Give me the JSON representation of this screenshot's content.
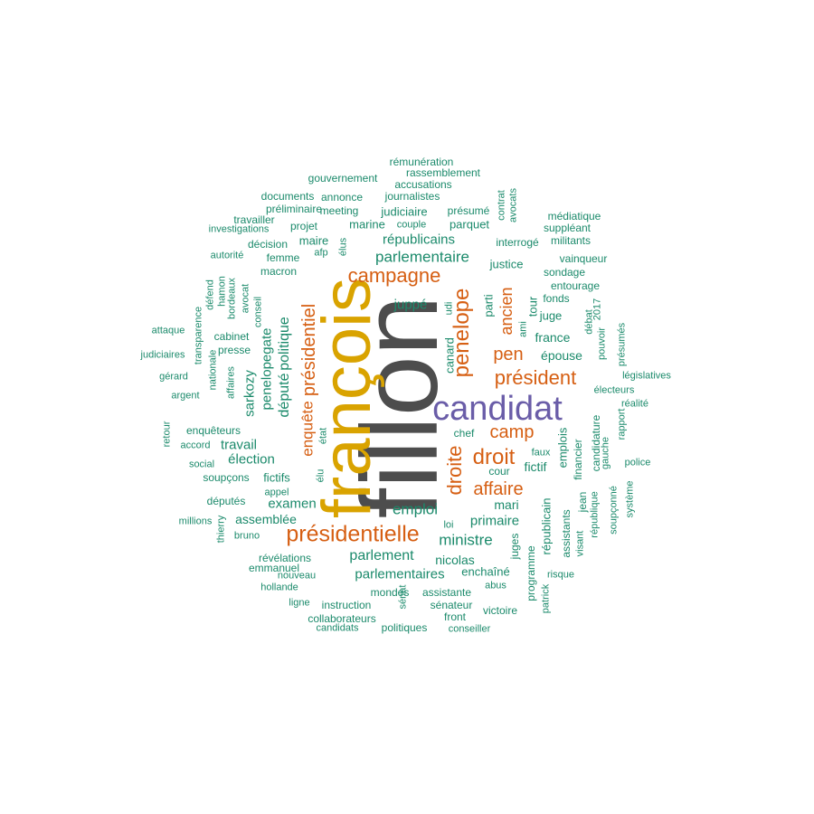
{
  "palette": {
    "dark": "#4d4d4d",
    "gold": "#d9a300",
    "purple": "#6a5da8",
    "orange": "#d65f13",
    "green": "#1b8a6b"
  },
  "words": [
    {
      "text": "fillon",
      "color": "dark"
    },
    {
      "text": "françois",
      "color": "gold"
    },
    {
      "text": "candidat",
      "color": "purple"
    },
    {
      "text": "présidentielle",
      "color": "orange"
    },
    {
      "text": "campagne",
      "color": "orange"
    },
    {
      "text": "penelope",
      "color": "orange"
    },
    {
      "text": "président",
      "color": "orange"
    },
    {
      "text": "droite",
      "color": "orange"
    },
    {
      "text": "droit",
      "color": "orange"
    },
    {
      "text": "présidentiel",
      "color": "orange"
    },
    {
      "text": "affaire",
      "color": "orange"
    },
    {
      "text": "camp",
      "color": "orange"
    },
    {
      "text": "pen",
      "color": "orange"
    },
    {
      "text": "ancien",
      "color": "orange"
    },
    {
      "text": "enquête",
      "color": "orange"
    },
    {
      "text": "parlementaire",
      "color": "green"
    },
    {
      "text": "républicains",
      "color": "green"
    },
    {
      "text": "député",
      "color": "green"
    },
    {
      "text": "politique",
      "color": "green"
    },
    {
      "text": "emploi",
      "color": "green"
    },
    {
      "text": "ministre",
      "color": "green"
    },
    {
      "text": "primaire",
      "color": "green"
    },
    {
      "text": "parlement",
      "color": "green"
    },
    {
      "text": "parlementaires",
      "color": "green"
    },
    {
      "text": "juppé",
      "color": "green"
    },
    {
      "text": "penelopegate",
      "color": "green"
    },
    {
      "text": "sarkozy",
      "color": "green"
    },
    {
      "text": "élection",
      "color": "green"
    },
    {
      "text": "travail",
      "color": "green"
    },
    {
      "text": "examen",
      "color": "green"
    },
    {
      "text": "fictifs",
      "color": "green"
    },
    {
      "text": "assemblée",
      "color": "green"
    },
    {
      "text": "france",
      "color": "green"
    },
    {
      "text": "épouse",
      "color": "green"
    },
    {
      "text": "fictif",
      "color": "green"
    },
    {
      "text": "emplois",
      "color": "green"
    },
    {
      "text": "mari",
      "color": "green"
    },
    {
      "text": "nicolas",
      "color": "green"
    },
    {
      "text": "enchaîné",
      "color": "green"
    },
    {
      "text": "juge",
      "color": "green"
    },
    {
      "text": "justice",
      "color": "green"
    },
    {
      "text": "parti",
      "color": "green"
    },
    {
      "text": "tour",
      "color": "green"
    },
    {
      "text": "canard",
      "color": "green"
    },
    {
      "text": "judiciaire",
      "color": "green"
    },
    {
      "text": "parquet",
      "color": "green"
    },
    {
      "text": "marine",
      "color": "green"
    },
    {
      "text": "maire",
      "color": "green"
    },
    {
      "text": "femme",
      "color": "green"
    },
    {
      "text": "macron",
      "color": "green"
    },
    {
      "text": "républicain",
      "color": "green"
    },
    {
      "text": "cour",
      "color": "green"
    },
    {
      "text": "presse",
      "color": "green"
    },
    {
      "text": "cabinet",
      "color": "green"
    },
    {
      "text": "enquêteurs",
      "color": "green"
    },
    {
      "text": "soupçons",
      "color": "green"
    },
    {
      "text": "députés",
      "color": "green"
    },
    {
      "text": "révélations",
      "color": "green"
    },
    {
      "text": "emmanuel",
      "color": "green"
    },
    {
      "text": "assistante",
      "color": "green"
    },
    {
      "text": "mondes",
      "color": "green"
    },
    {
      "text": "instruction",
      "color": "green"
    },
    {
      "text": "collaborateurs",
      "color": "green"
    },
    {
      "text": "politiques",
      "color": "green"
    },
    {
      "text": "candidats",
      "color": "green"
    },
    {
      "text": "sénateur",
      "color": "green"
    },
    {
      "text": "victoire",
      "color": "green"
    },
    {
      "text": "front",
      "color": "green"
    },
    {
      "text": "conseiller",
      "color": "green"
    },
    {
      "text": "abus",
      "color": "green"
    },
    {
      "text": "juges",
      "color": "green"
    },
    {
      "text": "programme",
      "color": "green"
    },
    {
      "text": "patrick",
      "color": "green"
    },
    {
      "text": "financier",
      "color": "green"
    },
    {
      "text": "jean",
      "color": "green"
    },
    {
      "text": "assistants",
      "color": "green"
    },
    {
      "text": "visant",
      "color": "green"
    },
    {
      "text": "risque",
      "color": "green"
    },
    {
      "text": "candidature",
      "color": "green"
    },
    {
      "text": "gauche",
      "color": "green"
    },
    {
      "text": "république",
      "color": "green"
    },
    {
      "text": "soupçonné",
      "color": "green"
    },
    {
      "text": "rapport",
      "color": "green"
    },
    {
      "text": "système",
      "color": "green"
    },
    {
      "text": "police",
      "color": "green"
    },
    {
      "text": "réalité",
      "color": "green"
    },
    {
      "text": "électeurs",
      "color": "green"
    },
    {
      "text": "législatives",
      "color": "green"
    },
    {
      "text": "présumés",
      "color": "green"
    },
    {
      "text": "pouvoir",
      "color": "green"
    },
    {
      "text": "2017",
      "color": "green"
    },
    {
      "text": "débat",
      "color": "green"
    },
    {
      "text": "entourage",
      "color": "green"
    },
    {
      "text": "fonds",
      "color": "green"
    },
    {
      "text": "sondage",
      "color": "green"
    },
    {
      "text": "vainqueur",
      "color": "green"
    },
    {
      "text": "militants",
      "color": "green"
    },
    {
      "text": "suppléant",
      "color": "green"
    },
    {
      "text": "médiatique",
      "color": "green"
    },
    {
      "text": "interrogé",
      "color": "green"
    },
    {
      "text": "ami",
      "color": "green"
    },
    {
      "text": "contrat",
      "color": "green"
    },
    {
      "text": "avocats",
      "color": "green"
    },
    {
      "text": "présumé",
      "color": "green"
    },
    {
      "text": "journalistes",
      "color": "green"
    },
    {
      "text": "accusations",
      "color": "green"
    },
    {
      "text": "rassemblement",
      "color": "green"
    },
    {
      "text": "rémunération",
      "color": "green"
    },
    {
      "text": "gouvernement",
      "color": "green"
    },
    {
      "text": "documents",
      "color": "green"
    },
    {
      "text": "annonce",
      "color": "green"
    },
    {
      "text": "préliminaire",
      "color": "green"
    },
    {
      "text": "meeting",
      "color": "green"
    },
    {
      "text": "travailler",
      "color": "green"
    },
    {
      "text": "investigations",
      "color": "green"
    },
    {
      "text": "projet",
      "color": "green"
    },
    {
      "text": "couple",
      "color": "green"
    },
    {
      "text": "décision",
      "color": "green"
    },
    {
      "text": "autorité",
      "color": "green"
    },
    {
      "text": "afp",
      "color": "green"
    },
    {
      "text": "élus",
      "color": "green"
    },
    {
      "text": "udi",
      "color": "green"
    },
    {
      "text": "défend",
      "color": "green"
    },
    {
      "text": "hamon",
      "color": "green"
    },
    {
      "text": "bordeaux",
      "color": "green"
    },
    {
      "text": "avocat",
      "color": "green"
    },
    {
      "text": "conseil",
      "color": "green"
    },
    {
      "text": "attaque",
      "color": "green"
    },
    {
      "text": "transparence",
      "color": "green"
    },
    {
      "text": "judiciaires",
      "color": "green"
    },
    {
      "text": "nationale",
      "color": "green"
    },
    {
      "text": "affaires",
      "color": "green"
    },
    {
      "text": "gérard",
      "color": "green"
    },
    {
      "text": "argent",
      "color": "green"
    },
    {
      "text": "retour",
      "color": "green"
    },
    {
      "text": "accord",
      "color": "green"
    },
    {
      "text": "social",
      "color": "green"
    },
    {
      "text": "appel",
      "color": "green"
    },
    {
      "text": "millions",
      "color": "green"
    },
    {
      "text": "thierry",
      "color": "green"
    },
    {
      "text": "bruno",
      "color": "green"
    },
    {
      "text": "nouveau",
      "color": "green"
    },
    {
      "text": "hollande",
      "color": "green"
    },
    {
      "text": "ligne",
      "color": "green"
    },
    {
      "text": "élu",
      "color": "green"
    },
    {
      "text": "état",
      "color": "green"
    },
    {
      "text": "chef",
      "color": "green"
    },
    {
      "text": "faux",
      "color": "green"
    },
    {
      "text": "loi",
      "color": "green"
    },
    {
      "text": "sénat",
      "color": "green"
    }
  ]
}
